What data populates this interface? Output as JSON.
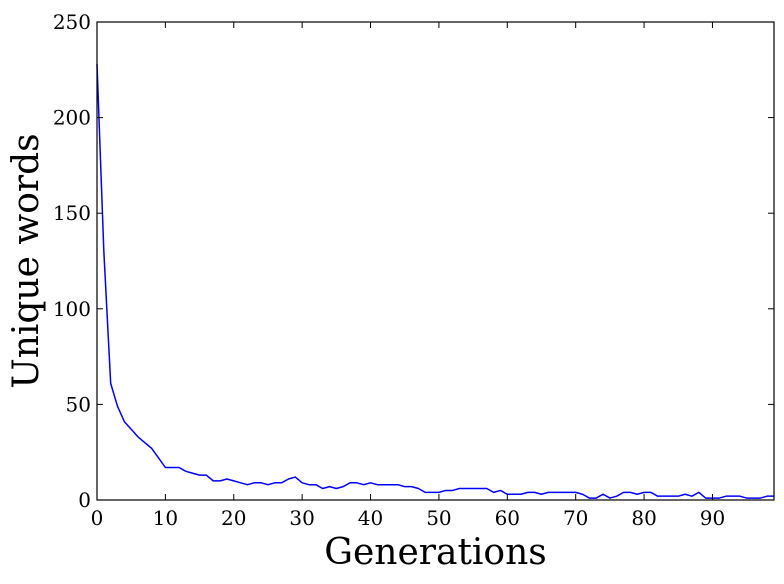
{
  "chart_data": {
    "type": "line",
    "xlabel": "Generations",
    "ylabel": "Unique words",
    "xlim": [
      0,
      99
    ],
    "ylim": [
      0,
      250
    ],
    "xticks": [
      0,
      10,
      20,
      30,
      40,
      50,
      60,
      70,
      80,
      90
    ],
    "yticks": [
      0,
      50,
      100,
      150,
      200,
      250
    ],
    "grid": false,
    "line_color": "#0000ff",
    "series": [
      {
        "x": [
          0,
          1,
          2,
          3,
          4,
          5,
          6,
          7,
          8,
          9,
          10,
          11,
          12,
          13,
          14,
          15,
          16,
          17,
          18,
          19,
          20,
          21,
          22,
          23,
          24,
          25,
          26,
          27,
          28,
          29,
          30,
          31,
          32,
          33,
          34,
          35,
          36,
          37,
          38,
          39,
          40,
          41,
          42,
          43,
          44,
          45,
          46,
          47,
          48,
          49,
          50,
          51,
          52,
          53,
          54,
          55,
          56,
          57,
          58,
          59,
          60,
          61,
          62,
          63,
          64,
          65,
          66,
          67,
          68,
          69,
          70,
          71,
          72,
          73,
          74,
          75,
          76,
          77,
          78,
          79,
          80,
          81,
          82,
          83,
          84,
          85,
          86,
          87,
          88,
          89,
          90,
          91,
          92,
          93,
          94,
          95,
          96,
          97,
          98,
          99
        ],
        "values": [
          228,
          130,
          61,
          49,
          41,
          37,
          33,
          30,
          27,
          22,
          17,
          17,
          17,
          15,
          14,
          13,
          13,
          10,
          10,
          11,
          10,
          9,
          8,
          9,
          9,
          8,
          9,
          9,
          11,
          12,
          9,
          8,
          8,
          6,
          7,
          6,
          7,
          9,
          9,
          8,
          9,
          8,
          8,
          8,
          8,
          7,
          7,
          6,
          4,
          4,
          4,
          5,
          5,
          6,
          6,
          6,
          6,
          6,
          4,
          5,
          3,
          3,
          3,
          4,
          4,
          3,
          4,
          4,
          4,
          4,
          4,
          3,
          1,
          1,
          3,
          1,
          2,
          4,
          4,
          3,
          4,
          4,
          2,
          2,
          2,
          2,
          3,
          2,
          4,
          1,
          1,
          1,
          2,
          2,
          2,
          1,
          1,
          1,
          2,
          2
        ]
      }
    ]
  }
}
